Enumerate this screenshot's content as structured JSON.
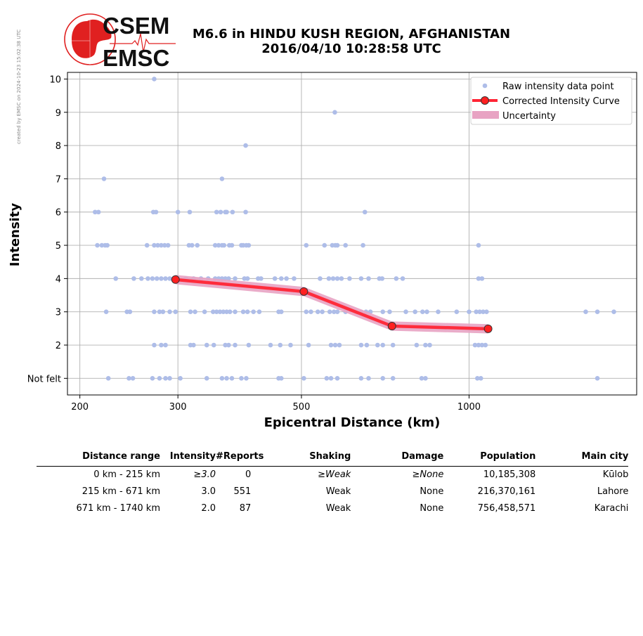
{
  "side_note": "created by EMSC on 2024-10-23 15:02:38 UTC",
  "logo": {
    "line1": "CSEM",
    "line2": "EMSC"
  },
  "title": {
    "line1": "M6.6 in HINDU KUSH REGION, AFGHANISTAN",
    "line2": "2016/04/10 10:28:58 UTC"
  },
  "colors": {
    "raw": "#aebde8",
    "curve": "#ff2535",
    "uncertainty": "#e8a3c3",
    "marker": "#ff2020",
    "logo_red": "#e02020"
  },
  "chart_data": {
    "type": "scatter",
    "xlabel": "Epicentral Distance (km)",
    "ylabel": "Intensity",
    "x_scale": "log",
    "xlim": [
      190,
      2000
    ],
    "ylim": [
      0.5,
      10.2
    ],
    "x_ticks": [
      200,
      300,
      500,
      1000
    ],
    "x_tick_labels": [
      "200",
      "300",
      "500",
      "1000"
    ],
    "y_ticks": [
      1,
      2,
      3,
      4,
      5,
      6,
      7,
      8,
      9,
      10
    ],
    "y_tick_labels": [
      "Not felt",
      "2",
      "3",
      "4",
      "5",
      "6",
      "7",
      "8",
      "9",
      "10"
    ],
    "grid": true,
    "legend": {
      "position": "top-right",
      "raw": "Raw intensity data point",
      "curve": "Corrected Intensity Curve",
      "uncertainty": "Uncertainty"
    },
    "raw_points": [
      [
        272,
        10
      ],
      [
        574,
        9
      ],
      [
        397,
        8
      ],
      [
        221,
        7
      ],
      [
        360,
        7
      ],
      [
        213,
        6
      ],
      [
        216,
        6
      ],
      [
        271,
        6
      ],
      [
        274,
        6
      ],
      [
        300,
        6
      ],
      [
        315,
        6
      ],
      [
        352,
        6
      ],
      [
        358,
        6
      ],
      [
        365,
        6
      ],
      [
        367,
        6
      ],
      [
        376,
        6
      ],
      [
        397,
        6
      ],
      [
        650,
        6
      ],
      [
        215,
        5
      ],
      [
        219,
        5
      ],
      [
        222,
        5
      ],
      [
        224,
        5
      ],
      [
        264,
        5
      ],
      [
        272,
        5
      ],
      [
        276,
        5
      ],
      [
        280,
        5
      ],
      [
        284,
        5
      ],
      [
        288,
        5
      ],
      [
        314,
        5
      ],
      [
        318,
        5
      ],
      [
        325,
        5
      ],
      [
        350,
        5
      ],
      [
        355,
        5
      ],
      [
        360,
        5
      ],
      [
        363,
        5
      ],
      [
        371,
        5
      ],
      [
        375,
        5
      ],
      [
        390,
        5
      ],
      [
        393,
        5
      ],
      [
        398,
        5
      ],
      [
        402,
        5
      ],
      [
        510,
        5
      ],
      [
        550,
        5
      ],
      [
        568,
        5
      ],
      [
        575,
        5
      ],
      [
        580,
        5
      ],
      [
        600,
        5
      ],
      [
        645,
        5
      ],
      [
        1040,
        5
      ],
      [
        232,
        4
      ],
      [
        250,
        4
      ],
      [
        258,
        4
      ],
      [
        265,
        4
      ],
      [
        270,
        4
      ],
      [
        275,
        4
      ],
      [
        280,
        4
      ],
      [
        285,
        4
      ],
      [
        290,
        4
      ],
      [
        300,
        4
      ],
      [
        310,
        4
      ],
      [
        320,
        4
      ],
      [
        330,
        4
      ],
      [
        340,
        4
      ],
      [
        350,
        4
      ],
      [
        355,
        4
      ],
      [
        360,
        4
      ],
      [
        365,
        4
      ],
      [
        370,
        4
      ],
      [
        380,
        4
      ],
      [
        395,
        4
      ],
      [
        400,
        4
      ],
      [
        418,
        4
      ],
      [
        423,
        4
      ],
      [
        448,
        4
      ],
      [
        460,
        4
      ],
      [
        470,
        4
      ],
      [
        485,
        4
      ],
      [
        540,
        4
      ],
      [
        560,
        4
      ],
      [
        570,
        4
      ],
      [
        580,
        4
      ],
      [
        590,
        4
      ],
      [
        610,
        4
      ],
      [
        640,
        4
      ],
      [
        660,
        4
      ],
      [
        690,
        4
      ],
      [
        698,
        4
      ],
      [
        740,
        4
      ],
      [
        760,
        4
      ],
      [
        1040,
        4
      ],
      [
        1055,
        4
      ],
      [
        223,
        3
      ],
      [
        243,
        3
      ],
      [
        246,
        3
      ],
      [
        272,
        3
      ],
      [
        278,
        3
      ],
      [
        282,
        3
      ],
      [
        290,
        3
      ],
      [
        297,
        3
      ],
      [
        316,
        3
      ],
      [
        322,
        3
      ],
      [
        335,
        3
      ],
      [
        347,
        3
      ],
      [
        352,
        3
      ],
      [
        357,
        3
      ],
      [
        362,
        3
      ],
      [
        367,
        3
      ],
      [
        372,
        3
      ],
      [
        380,
        3
      ],
      [
        393,
        3
      ],
      [
        400,
        3
      ],
      [
        410,
        3
      ],
      [
        420,
        3
      ],
      [
        455,
        3
      ],
      [
        460,
        3
      ],
      [
        510,
        3
      ],
      [
        520,
        3
      ],
      [
        535,
        3
      ],
      [
        545,
        3
      ],
      [
        562,
        3
      ],
      [
        572,
        3
      ],
      [
        580,
        3
      ],
      [
        600,
        3
      ],
      [
        640,
        3
      ],
      [
        653,
        3
      ],
      [
        665,
        3
      ],
      [
        700,
        3
      ],
      [
        720,
        3
      ],
      [
        770,
        3
      ],
      [
        800,
        3
      ],
      [
        825,
        3
      ],
      [
        840,
        3
      ],
      [
        880,
        3
      ],
      [
        950,
        3
      ],
      [
        1000,
        3
      ],
      [
        1030,
        3
      ],
      [
        1045,
        3
      ],
      [
        1060,
        3
      ],
      [
        1075,
        3
      ],
      [
        1620,
        3
      ],
      [
        1700,
        3
      ],
      [
        1820,
        3
      ],
      [
        272,
        2
      ],
      [
        280,
        2
      ],
      [
        285,
        2
      ],
      [
        316,
        2
      ],
      [
        320,
        2
      ],
      [
        338,
        2
      ],
      [
        348,
        2
      ],
      [
        365,
        2
      ],
      [
        370,
        2
      ],
      [
        380,
        2
      ],
      [
        402,
        2
      ],
      [
        440,
        2
      ],
      [
        458,
        2
      ],
      [
        478,
        2
      ],
      [
        515,
        2
      ],
      [
        565,
        2
      ],
      [
        575,
        2
      ],
      [
        585,
        2
      ],
      [
        640,
        2
      ],
      [
        655,
        2
      ],
      [
        685,
        2
      ],
      [
        700,
        2
      ],
      [
        730,
        2
      ],
      [
        805,
        2
      ],
      [
        835,
        2
      ],
      [
        850,
        2
      ],
      [
        1025,
        2
      ],
      [
        1040,
        2
      ],
      [
        1055,
        2
      ],
      [
        1070,
        2
      ],
      [
        225,
        1
      ],
      [
        245,
        1
      ],
      [
        249,
        1
      ],
      [
        270,
        1
      ],
      [
        278,
        1
      ],
      [
        285,
        1
      ],
      [
        290,
        1
      ],
      [
        303,
        1
      ],
      [
        338,
        1
      ],
      [
        360,
        1
      ],
      [
        367,
        1
      ],
      [
        375,
        1
      ],
      [
        390,
        1
      ],
      [
        398,
        1
      ],
      [
        455,
        1
      ],
      [
        460,
        1
      ],
      [
        505,
        1
      ],
      [
        555,
        1
      ],
      [
        565,
        1
      ],
      [
        580,
        1
      ],
      [
        640,
        1
      ],
      [
        660,
        1
      ],
      [
        700,
        1
      ],
      [
        730,
        1
      ],
      [
        822,
        1
      ],
      [
        835,
        1
      ],
      [
        1035,
        1
      ],
      [
        1050,
        1
      ],
      [
        1700,
        1
      ]
    ],
    "curve_points": [
      [
        297,
        3.97
      ],
      [
        505,
        3.61
      ],
      [
        727,
        2.57
      ],
      [
        1082,
        2.49
      ]
    ],
    "uncertainty_width": 0.14
  },
  "table": {
    "headers": [
      "Distance range",
      "Intensity",
      "#Reports",
      "Shaking",
      "Damage",
      "Population",
      "Main city"
    ],
    "rows": [
      [
        "0 km -  215 km",
        "≥3.0",
        "0",
        "≥Weak",
        "≥None",
        "10,185,308",
        "Kūlob"
      ],
      [
        "215 km -  671 km",
        "3.0",
        "551",
        "Weak",
        "None",
        "216,370,161",
        "Lahore"
      ],
      [
        "671 km - 1740 km",
        "2.0",
        "87",
        "Weak",
        "None",
        "756,458,571",
        "Karachi"
      ]
    ]
  }
}
